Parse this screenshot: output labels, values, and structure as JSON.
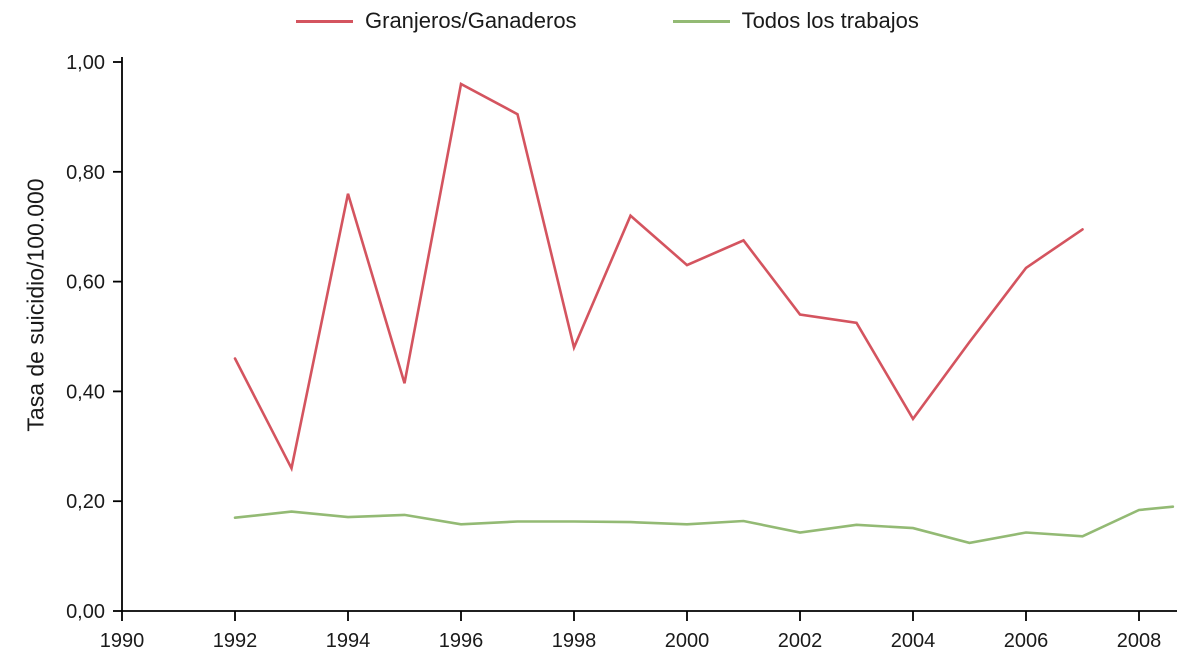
{
  "chart_data": {
    "type": "line",
    "title": "",
    "xlabel": "",
    "ylabel": "Tasa de suicidio/100.000",
    "ylim": [
      0,
      1
    ],
    "xlim": [
      1990,
      2008.7
    ],
    "grid": false,
    "legend_position": "top",
    "axis_color": "#000000",
    "text_color": "#1a1a1a",
    "y_ticks": {
      "values": [
        0,
        0.2,
        0.4,
        0.6,
        0.8,
        1.0
      ],
      "labels": [
        "0,00",
        "0,20",
        "0,40",
        "0,60",
        "0,80",
        "1,00"
      ]
    },
    "x_ticks": {
      "values": [
        1990,
        1992,
        1994,
        1996,
        1998,
        2000,
        2002,
        2004,
        2006,
        2008
      ],
      "labels": [
        "1990",
        "1992",
        "1994",
        "1996",
        "1998",
        "2000",
        "2002",
        "2004",
        "2006",
        "2008"
      ]
    },
    "series": [
      {
        "name": "Granjeros/Ganaderos",
        "color": "#d4545f",
        "x": [
          1992,
          1993,
          1994,
          1995,
          1996,
          1997,
          1998,
          1999,
          2000,
          2001,
          2002,
          2003,
          2004,
          2005,
          2006,
          2007
        ],
        "values": [
          0.46,
          0.26,
          0.76,
          0.415,
          0.96,
          0.905,
          0.48,
          0.72,
          0.63,
          0.675,
          0.54,
          0.525,
          0.35,
          0.49,
          0.625,
          0.695
        ]
      },
      {
        "name": "Todos los trabajos",
        "color": "#93ba74",
        "x": [
          1992,
          1993,
          1994,
          1995,
          1996,
          1997,
          1998,
          1999,
          2000,
          2001,
          2002,
          2003,
          2004,
          2005,
          2006,
          2007,
          2008,
          2008.6
        ],
        "values": [
          0.17,
          0.181,
          0.171,
          0.175,
          0.158,
          0.163,
          0.163,
          0.162,
          0.158,
          0.164,
          0.143,
          0.157,
          0.151,
          0.124,
          0.143,
          0.136,
          0.184,
          0.19
        ]
      }
    ]
  }
}
